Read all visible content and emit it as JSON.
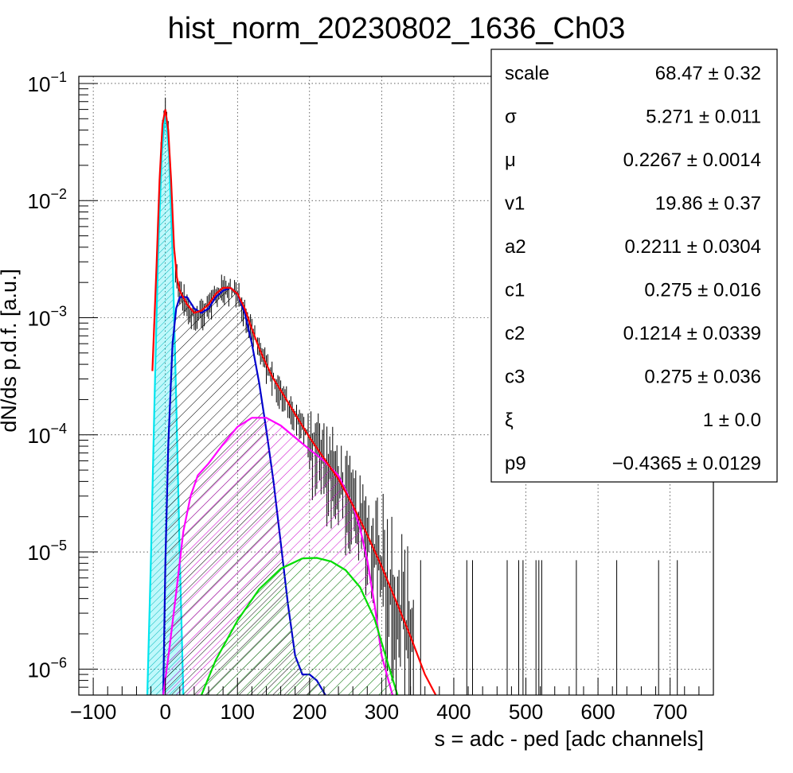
{
  "chart_data": {
    "type": "line",
    "title": "hist_norm_20230802_1636_Ch03",
    "xlabel": "s = adc - ped [adc channels]",
    "ylabel": "dN/ds p.d.f. [a.u.]",
    "xlim": [
      -120,
      760
    ],
    "ylim": [
      6e-07,
      0.115
    ],
    "yscale": "log",
    "grid": true,
    "x_ticks": [
      -100,
      0,
      100,
      200,
      300,
      400,
      500,
      600,
      700
    ],
    "x_tick_labels": [
      "−100",
      "0",
      "100",
      "200",
      "300",
      "400",
      "500",
      "600",
      "700"
    ],
    "y_ticks": [
      1e-06,
      1e-05,
      0.0001,
      0.001,
      0.01,
      0.1
    ],
    "y_tick_labels": [
      {
        "base": "10",
        "exp": "−6"
      },
      {
        "base": "10",
        "exp": "−5"
      },
      {
        "base": "10",
        "exp": "−4"
      },
      {
        "base": "10",
        "exp": "−3"
      },
      {
        "base": "10",
        "exp": "−2"
      },
      {
        "base": "10",
        "exp": "−1"
      }
    ],
    "series": [
      {
        "color": "#ff0000",
        "fill": "none",
        "x": [
          -18,
          -12,
          -8,
          -4,
          0,
          4,
          8,
          12,
          16,
          20,
          30,
          40,
          50,
          60,
          70,
          80,
          90,
          100,
          110,
          120,
          130,
          140,
          150,
          160,
          170,
          180,
          200,
          220,
          240,
          260,
          280,
          300,
          320,
          340,
          360,
          375
        ],
        "y": [
          0.00035,
          0.003,
          0.015,
          0.045,
          0.06,
          0.04,
          0.015,
          0.004,
          0.0022,
          0.0017,
          0.0013,
          0.0011,
          0.00115,
          0.0013,
          0.0016,
          0.0018,
          0.0018,
          0.0016,
          0.0012,
          0.0008,
          0.00055,
          0.0004,
          0.0003,
          0.00024,
          0.00019,
          0.00015,
          9.5e-05,
          6.3e-05,
          4.2e-05,
          2.5e-05,
          1.4e-05,
          7.5e-06,
          3.8e-06,
          1.9e-06,
          9e-07,
          6e-07
        ]
      },
      {
        "color": "#00e5ee",
        "fill": "#00e5ee",
        "x": [
          -25,
          -20,
          -15,
          -10,
          -5,
          0,
          5,
          10,
          15,
          20,
          25
        ],
        "y": [
          6e-07,
          9e-06,
          0.0002,
          0.0035,
          0.025,
          0.059,
          0.025,
          0.0035,
          0.0002,
          9e-06,
          6e-07
        ]
      },
      {
        "color": "#0000cc",
        "fill": "#000000",
        "x": [
          -3,
          0,
          4,
          10,
          15,
          20,
          30,
          40,
          50,
          60,
          70,
          80,
          90,
          100,
          110,
          120,
          130,
          140,
          150,
          160,
          170,
          180,
          190,
          200,
          210,
          222
        ],
        "y": [
          6e-07,
          8e-06,
          8e-05,
          0.0006,
          0.0012,
          0.0015,
          0.0015,
          0.0012,
          0.0011,
          0.0012,
          0.0015,
          0.0017,
          0.0018,
          0.0016,
          0.0011,
          0.0006,
          0.00028,
          0.00011,
          4e-05,
          1.2e-05,
          3.6e-06,
          1.3e-06,
          9e-07,
          9e-07,
          8e-07,
          6e-07
        ]
      },
      {
        "color": "#ff00ff",
        "fill": "#ff00ff",
        "x": [
          -3,
          5,
          15,
          25,
          35,
          45,
          60,
          80,
          100,
          120,
          140,
          160,
          180,
          200,
          220,
          240,
          260,
          270,
          280,
          290,
          300,
          315
        ],
        "y": [
          6e-07,
          1.4e-06,
          4.5e-06,
          1.5e-05,
          3e-05,
          4.5e-05,
          5.7e-05,
          8.3e-05,
          0.000117,
          0.00014,
          0.00014,
          0.00012,
          9.5e-05,
          7.5e-05,
          6e-05,
          4.5e-05,
          2.5e-05,
          1.6e-05,
          8.5e-06,
          3.6e-06,
          1.3e-06,
          6e-07
        ]
      },
      {
        "color": "#00dd00",
        "fill": "#00cc00",
        "x": [
          50,
          70,
          100,
          130,
          160,
          190,
          210,
          230,
          250,
          270,
          290,
          310,
          322
        ],
        "y": [
          6e-07,
          1.2e-06,
          2.6e-06,
          4.8e-06,
          7.2e-06,
          8.8e-06,
          8.9e-06,
          8.3e-06,
          7e-06,
          5e-06,
          2.7e-06,
          1.05e-06,
          6e-07
        ]
      }
    ],
    "stats_box": [
      {
        "name": "scale",
        "value": "68.47 ± 0.32"
      },
      {
        "name": "σ",
        "value": "5.271 ± 0.011"
      },
      {
        "name": "μ",
        "value": "0.2267 ± 0.0014"
      },
      {
        "name": "v1",
        "value": "19.86 ± 0.37"
      },
      {
        "name": "a2",
        "value": "0.2211 ± 0.0304"
      },
      {
        "name": "c1",
        "value": "0.275 ± 0.016"
      },
      {
        "name": "c2",
        "value": "0.1214 ± 0.0339"
      },
      {
        "name": "c3",
        "value": "0.275 ± 0.036"
      },
      {
        "name": "ξ",
        "value": "1 ± 0.0"
      },
      {
        "name": "p9",
        "value": "−0.4365 ± 0.0129"
      }
    ]
  }
}
